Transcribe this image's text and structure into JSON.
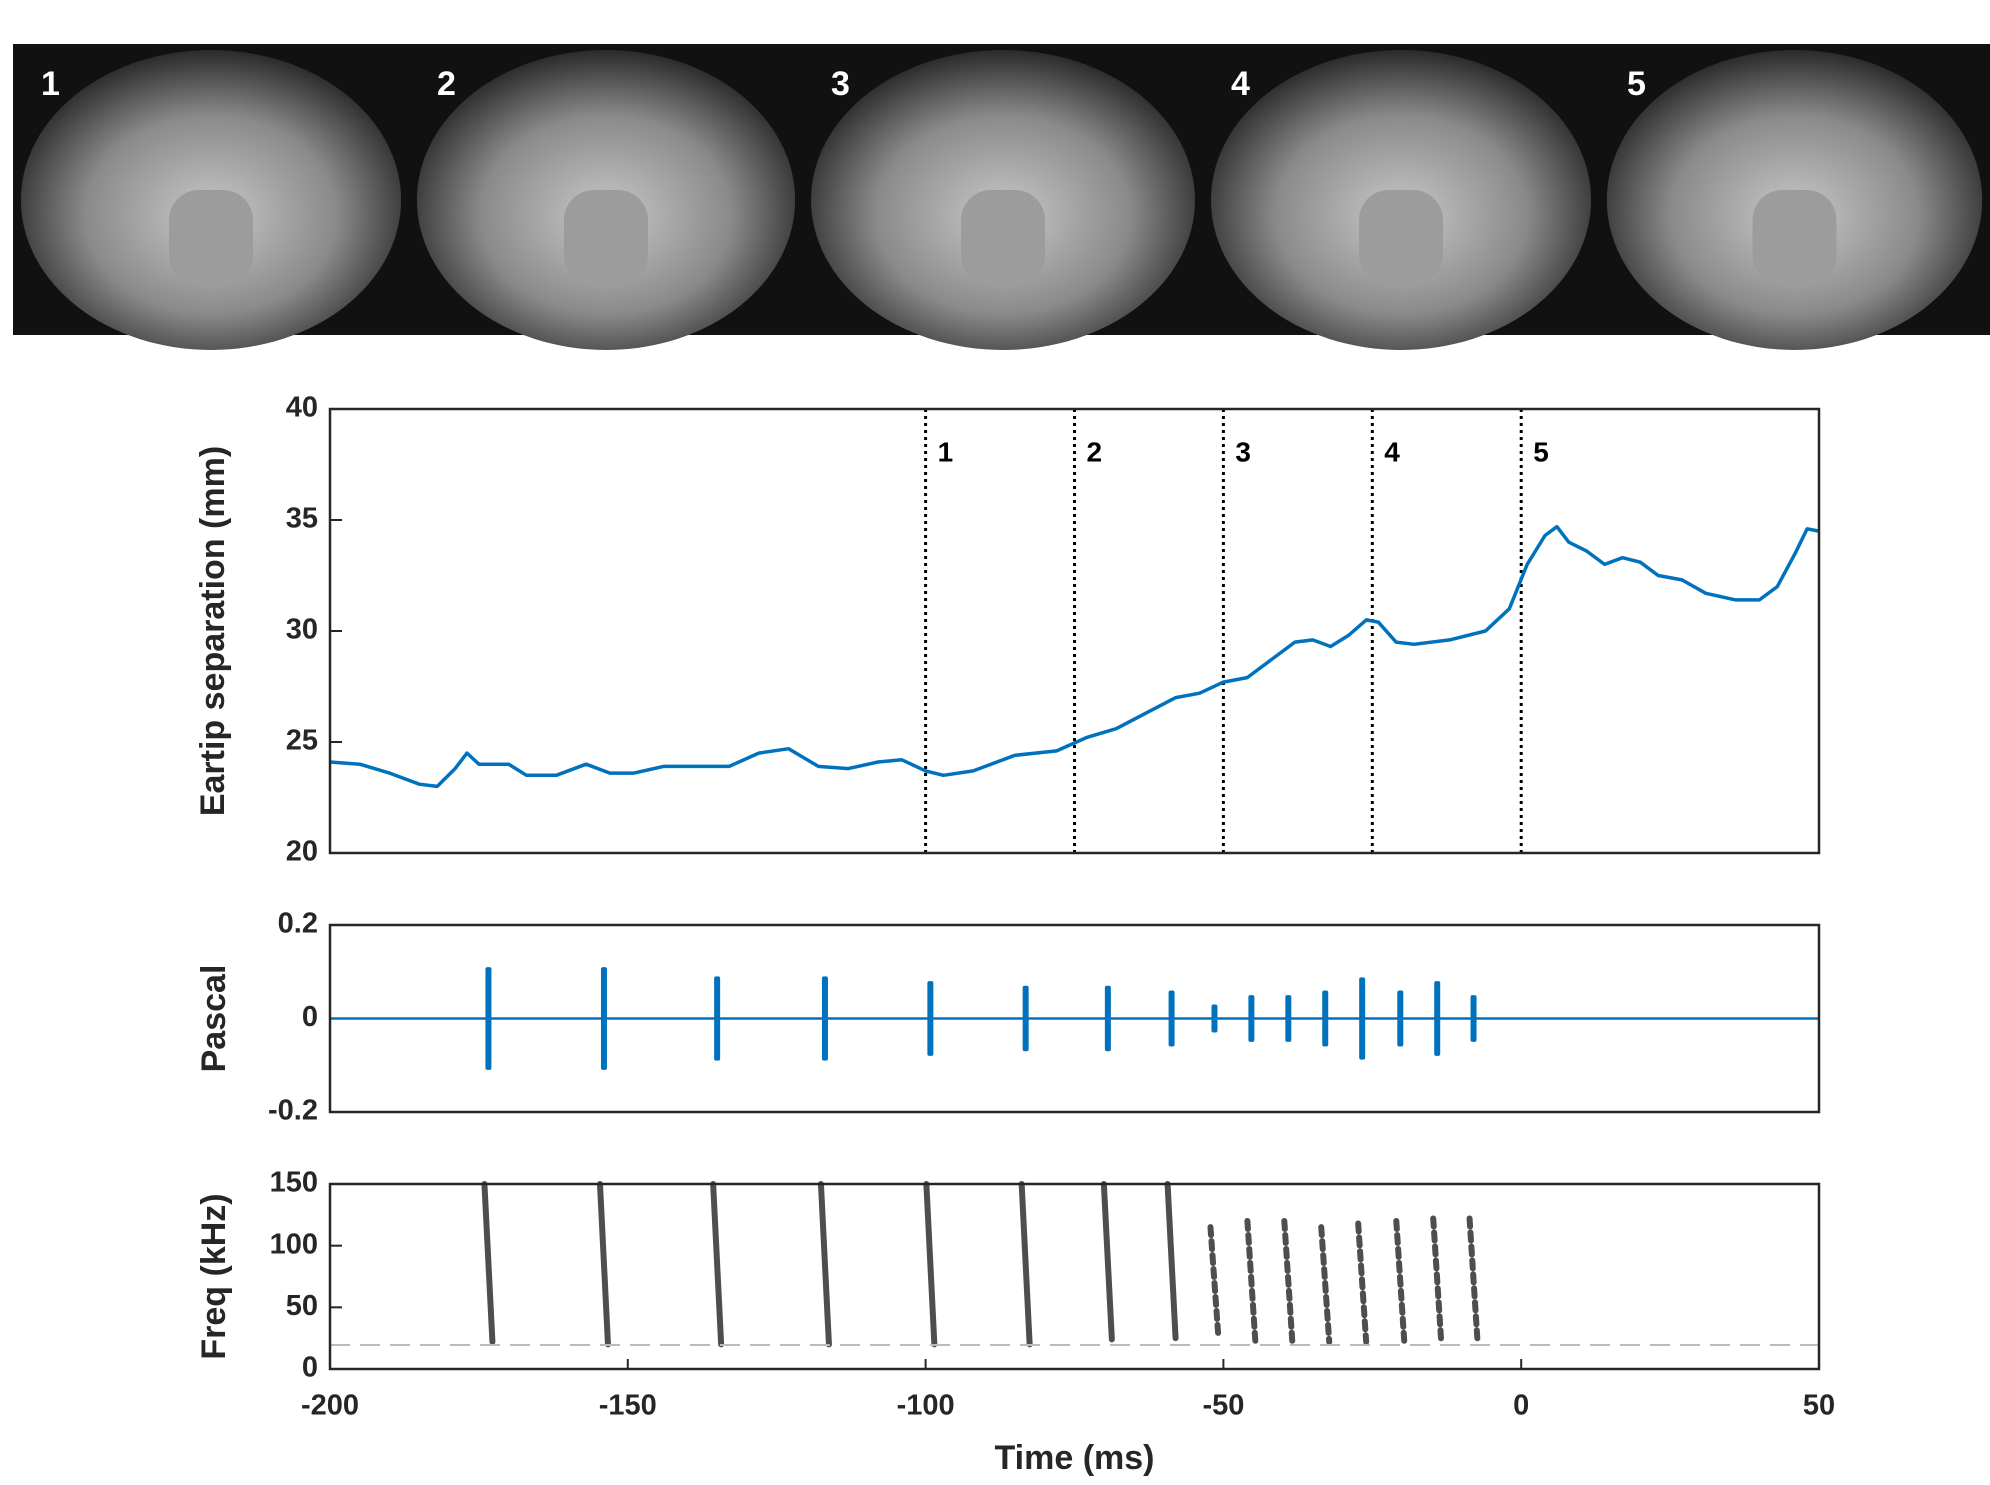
{
  "photos": {
    "labels": [
      "1",
      "2",
      "3",
      "4",
      "5"
    ]
  },
  "chart_data": [
    {
      "type": "line",
      "ylabel": "Eartip separation (mm)",
      "color": "#0072bd",
      "xlim": [
        -200,
        50
      ],
      "ylim": [
        20,
        40
      ],
      "yticks": [
        20,
        25,
        30,
        35,
        40
      ],
      "x": [
        -200,
        -195,
        -190,
        -185,
        -182,
        -179,
        -177,
        -175,
        -170,
        -167,
        -162,
        -157,
        -153,
        -149,
        -144,
        -138,
        -133,
        -128,
        -123,
        -118,
        -113,
        -108,
        -104,
        -100,
        -97,
        -92,
        -85,
        -78,
        -73,
        -68,
        -63,
        -58,
        -54,
        -50,
        -46,
        -42,
        -38,
        -35,
        -32,
        -29,
        -26,
        -24,
        -21,
        -18,
        -12,
        -6,
        -2,
        1,
        4,
        6,
        8,
        11,
        14,
        17,
        20,
        23,
        27,
        31,
        36,
        40,
        43,
        46,
        48,
        50
      ],
      "values": [
        24.1,
        24.0,
        23.6,
        23.1,
        23.0,
        23.8,
        24.5,
        24.0,
        24.0,
        23.5,
        23.5,
        24.0,
        23.6,
        23.6,
        23.9,
        23.9,
        23.9,
        24.5,
        24.7,
        23.9,
        23.8,
        24.1,
        24.2,
        23.7,
        23.5,
        23.7,
        24.4,
        24.6,
        25.2,
        25.6,
        26.3,
        27.0,
        27.2,
        27.7,
        27.9,
        28.7,
        29.5,
        29.6,
        29.3,
        29.8,
        30.5,
        30.4,
        29.5,
        29.4,
        29.6,
        30.0,
        31.0,
        33.0,
        34.3,
        34.7,
        34.0,
        33.6,
        33.0,
        33.3,
        33.1,
        32.5,
        32.3,
        31.7,
        31.4,
        31.4,
        32.0,
        33.5,
        34.6,
        34.5
      ],
      "markers": {
        "x": [
          -100,
          -75,
          -50,
          -25,
          0
        ],
        "labels": [
          "1",
          "2",
          "3",
          "4",
          "5"
        ]
      }
    },
    {
      "type": "waveform",
      "ylabel": "Pascal",
      "color": "#0072bd",
      "xlim": [
        -200,
        50
      ],
      "ylim": [
        -0.2,
        0.2
      ],
      "yticks": [
        -0.2,
        0,
        0.2
      ],
      "pulses": {
        "x": [
          -173.4,
          -154,
          -135,
          -116.9,
          -99.2,
          -83.2,
          -69.4,
          -58.7,
          -51.5,
          -45.3,
          -39.1,
          -32.9,
          -26.7,
          -20.3,
          -14.1,
          -8.0
        ],
        "amplitude": [
          0.11,
          0.11,
          0.09,
          0.09,
          0.08,
          0.07,
          0.07,
          0.06,
          0.03,
          0.05,
          0.05,
          0.06,
          0.088,
          0.06,
          0.08,
          0.05
        ]
      }
    },
    {
      "type": "spectrogram",
      "ylabel": "Freq (kHz)",
      "xlabel": "Time (ms)",
      "xlim": [
        -200,
        50
      ],
      "ylim": [
        0,
        150
      ],
      "yticks": [
        0,
        50,
        100,
        150
      ],
      "xticks": [
        -200,
        -150,
        -100,
        -50,
        0,
        50
      ],
      "calls": {
        "x": [
          -173.4,
          -154,
          -135,
          -116.9,
          -99.2,
          -83.2,
          -69.4,
          -58.7,
          -51.5,
          -45.3,
          -39.1,
          -32.9,
          -26.7,
          -20.3,
          -14.1,
          -8.0
        ],
        "f_high": [
          150,
          150,
          150,
          150,
          150,
          150,
          150,
          150,
          115,
          120,
          120,
          115,
          118,
          120,
          122,
          122
        ],
        "f_low": [
          22,
          20,
          20,
          20,
          20,
          20,
          24,
          25,
          25,
          22,
          22,
          22,
          22,
          22,
          22,
          22
        ]
      }
    }
  ]
}
